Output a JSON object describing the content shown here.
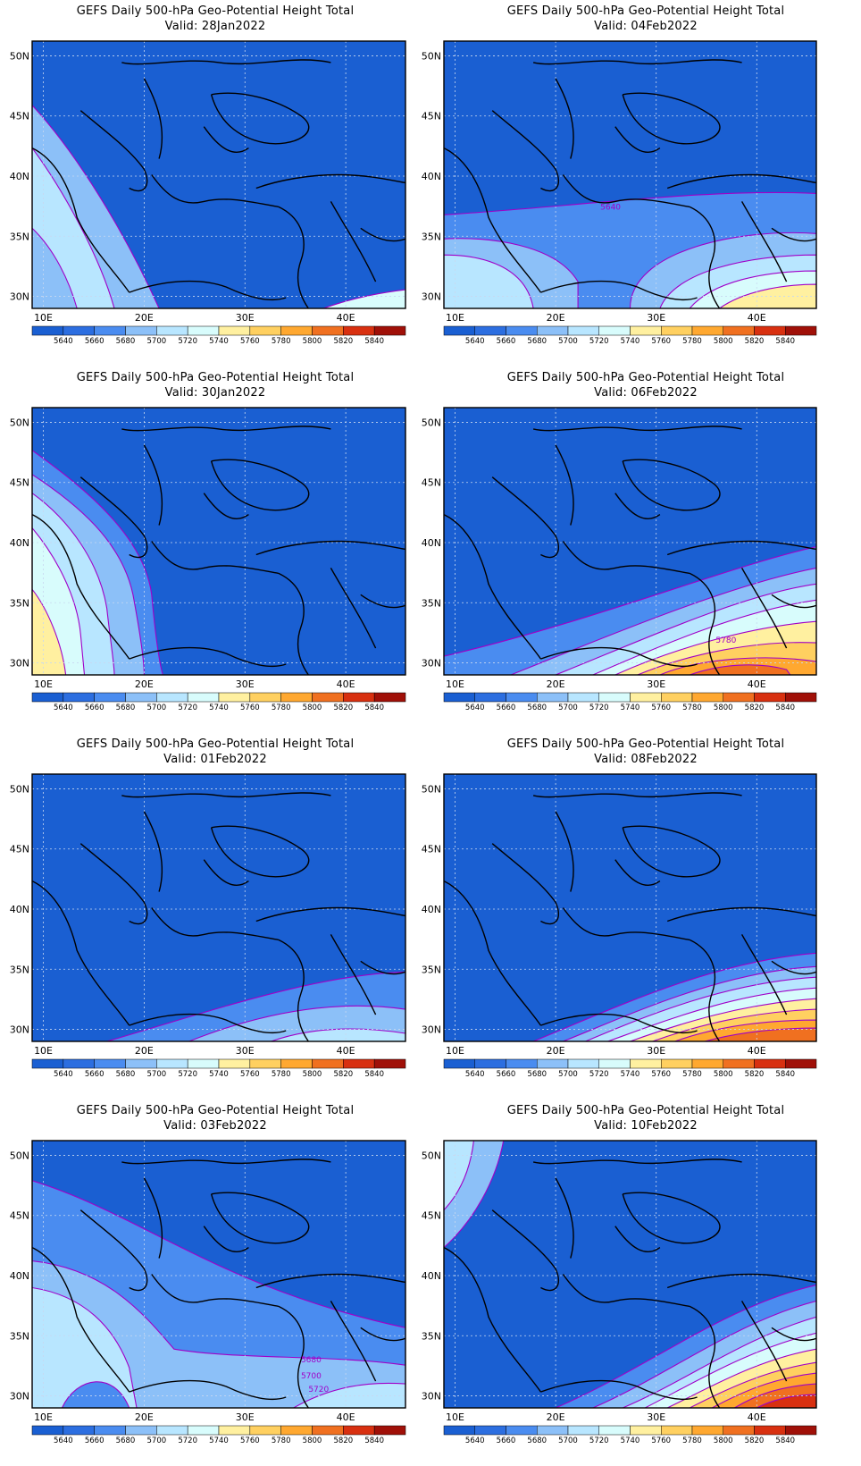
{
  "title": "GEFS Daily 500-hPa Geo-Potential Height Total",
  "valid_prefix": "Valid:",
  "lat_labels": [
    "30N",
    "35N",
    "40N",
    "45N",
    "50N"
  ],
  "lon_labels": [
    "10E",
    "20E",
    "30E",
    "40E"
  ],
  "colorbar": {
    "labels": [
      "5640",
      "5660",
      "5680",
      "5700",
      "5720",
      "5740",
      "5760",
      "5780",
      "5800",
      "5820",
      "5840"
    ],
    "colors": [
      "#1a5fd2",
      "#2c6ee0",
      "#4a8cf0",
      "#8cc0f8",
      "#b8e6ff",
      "#d8fcfc",
      "#fff0a0",
      "#ffd060",
      "#ffa830",
      "#f07020",
      "#d83010",
      "#a01008"
    ]
  },
  "panels": [
    {
      "valid": "Valid: 28Jan2022",
      "contour_labels": []
    },
    {
      "valid": "Valid: 04Feb2022",
      "contour_labels": [
        "5640"
      ]
    },
    {
      "valid": "Valid: 30Jan2022",
      "contour_labels": []
    },
    {
      "valid": "Valid: 06Feb2022",
      "contour_labels": [
        "5780"
      ]
    },
    {
      "valid": "Valid: 01Feb2022",
      "contour_labels": []
    },
    {
      "valid": "Valid: 08Feb2022",
      "contour_labels": []
    },
    {
      "valid": "Valid: 03Feb2022",
      "contour_labels": [
        "5680",
        "5700",
        "5720"
      ]
    },
    {
      "valid": "Valid: 10Feb2022",
      "contour_labels": []
    }
  ]
}
